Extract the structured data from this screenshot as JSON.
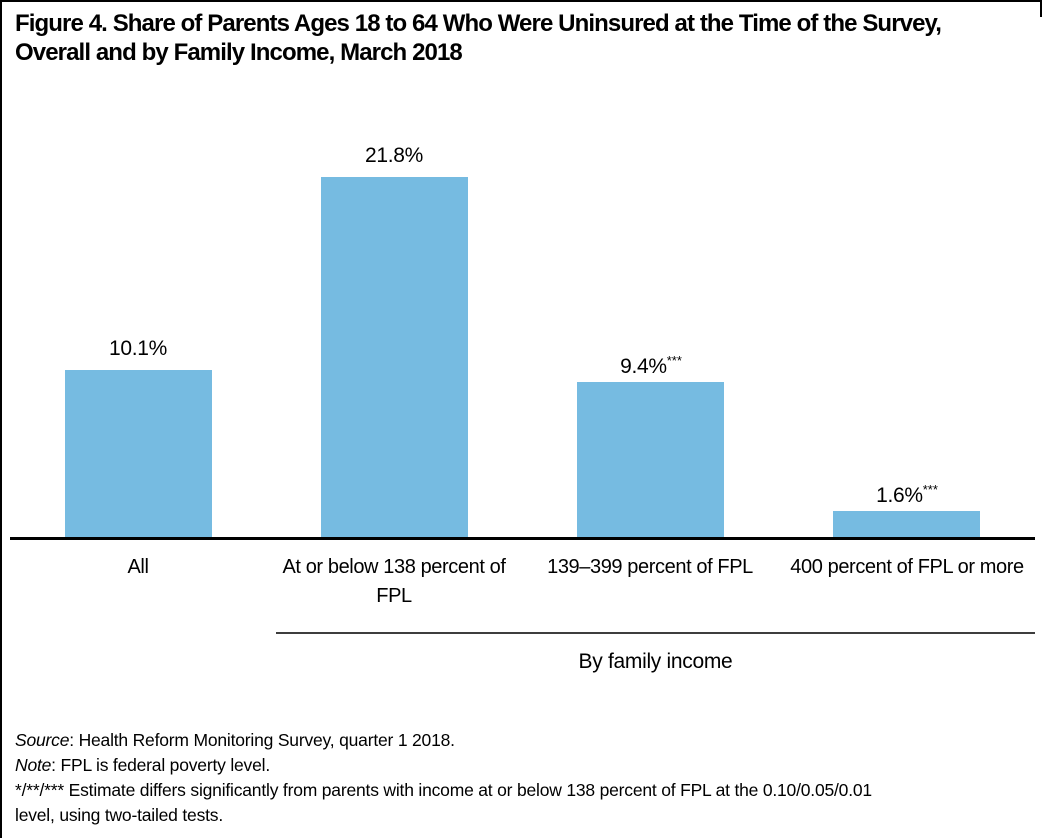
{
  "figure_title": "Figure 4. Share of Parents Ages 18 to 64 Who Were Uninsured at the Time of the Survey,\nOverall and by Family Income, March 2018",
  "chart_data": {
    "type": "bar",
    "categories": [
      "All",
      "At or below 138 percent of\nFPL",
      "139–399 percent of FPL",
      "400 percent of FPL or more"
    ],
    "values": [
      10.1,
      21.8,
      9.4,
      1.6
    ],
    "value_labels": [
      "10.1%",
      "21.8%",
      "9.4%",
      "1.6%"
    ],
    "value_label_superscripts": [
      "",
      "",
      "***",
      "***"
    ],
    "title": "Figure 4. Share of Parents Ages 18 to 64 Who Were Uninsured at the Time of the Survey, Overall and by Family Income, March 2018",
    "xlabel": "",
    "ylabel": "",
    "ylim": [
      0,
      24.5
    ],
    "grid": false,
    "legend": false,
    "y_axis_ticks_shown": false,
    "bar_color": "#76bbe1",
    "group_axis_label": "By family income",
    "group_axis_span_categories": [
      "At or below 138 percent of FPL",
      "139–399 percent of FPL",
      "400 percent of FPL or more"
    ]
  },
  "notes": [
    {
      "prefix_italic": "Source",
      "text": ": Health Reform Monitoring Survey, quarter 1 2018."
    },
    {
      "prefix_italic": "Note",
      "text": ": FPL is federal poverty level."
    },
    {
      "prefix_italic": "",
      "text": "*/**/*** Estimate differs significantly from parents with income at or below 138 percent of FPL at the 0.10/0.05/0.01\nlevel, using two-tailed tests."
    }
  ]
}
